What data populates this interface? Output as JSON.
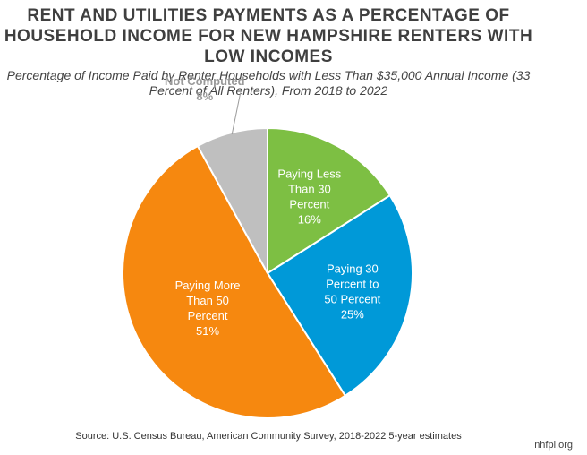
{
  "chart_data": {
    "type": "pie",
    "title": "RENT AND UTILITIES PAYMENTS AS A PERCENTAGE OF HOUSEHOLD INCOME FOR NEW HAMPSHIRE RENTERS WITH LOW INCOMES",
    "subtitle": "Percentage of Income Paid by Renter Households with Less Than $35,000 Annual Income (33 Percent of All Renters), From 2018 to 2022",
    "slices": [
      {
        "label_lines": [
          "Paying Less",
          "Than 30",
          "Percent"
        ],
        "value": 16,
        "value_label": "16%",
        "color": "#7dbf43",
        "label_color": "#ffffff"
      },
      {
        "label_lines": [
          "Paying 30",
          "Percent to",
          "50 Percent"
        ],
        "value": 25,
        "value_label": "25%",
        "color": "#0099d8",
        "label_color": "#ffffff"
      },
      {
        "label_lines": [
          "Paying More",
          "Than 50",
          "Percent"
        ],
        "value": 51,
        "value_label": "51%",
        "color": "#f6880f",
        "label_color": "#ffffff"
      },
      {
        "label_lines": [
          "Not Computed"
        ],
        "value": 8,
        "value_label": "8%",
        "color": "#bfbfbf",
        "label_color": "#9a9a9a",
        "outside": true
      }
    ]
  },
  "source": "Source: U.S. Census Bureau, American Community Survey, 2018-2022 5-year estimates",
  "brand": "nhfpi.org"
}
